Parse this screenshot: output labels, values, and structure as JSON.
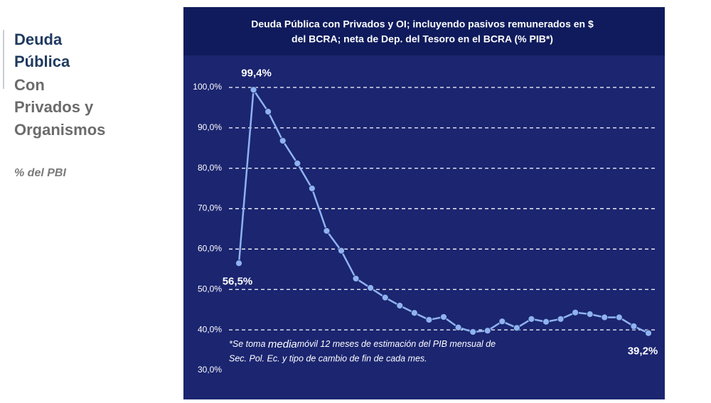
{
  "sidebar": {
    "title": [
      "Deuda",
      "Pública"
    ],
    "subtitle": [
      "Con",
      "Privados y",
      "Organismos"
    ],
    "unit": "% del PBI"
  },
  "chart_data": {
    "type": "line",
    "title": [
      "Deuda Pública con Privados y OI; incluyendo pasivos remunerados en $",
      "del BCRA; neta de Dep. del Tesoro en el BCRA (% PIB*)"
    ],
    "note": [
      "*Se toma ",
      "media",
      "móvil 12 meses de estimación del PIB mensual de",
      "Sec. Pol. Ec. y tipo de cambio de fin de cada mes."
    ],
    "categories": [
      null,
      null,
      null,
      null,
      null,
      null,
      null,
      null,
      null,
      null,
      null,
      null,
      null,
      null,
      null,
      null,
      null,
      null,
      null,
      null,
      null,
      null,
      null,
      null,
      null,
      null,
      null,
      null,
      null
    ],
    "values": [
      56.5,
      99.4,
      94.0,
      86.8,
      81.2,
      75.0,
      64.5,
      59.6,
      52.7,
      50.4,
      48.0,
      46.0,
      44.2,
      42.5,
      43.2,
      40.6,
      39.5,
      39.8,
      42.1,
      40.5,
      42.7,
      42.0,
      42.7,
      44.3,
      43.9,
      43.1,
      43.1,
      40.9,
      39.2
    ],
    "value_labels": [
      "56,5%",
      "99,4%",
      null,
      null,
      null,
      null,
      null,
      null,
      null,
      null,
      null,
      null,
      null,
      null,
      null,
      null,
      null,
      null,
      null,
      null,
      null,
      null,
      null,
      null,
      null,
      null,
      null,
      null,
      "39,2%"
    ],
    "color": "#8fb3ef",
    "ylim": [
      30,
      100
    ],
    "yticks": [
      {
        "value": 30,
        "label": "30,0%"
      },
      {
        "value": 40,
        "label": "40,0%"
      },
      {
        "value": 50,
        "label": "50,0%"
      },
      {
        "value": 60,
        "label": "60,0%"
      },
      {
        "value": 70,
        "label": "70,0%"
      },
      {
        "value": 80,
        "label": "80,0%"
      },
      {
        "value": 90,
        "label": "90,0%"
      },
      {
        "value": 100,
        "label": "100,0%"
      }
    ],
    "grid": true
  }
}
